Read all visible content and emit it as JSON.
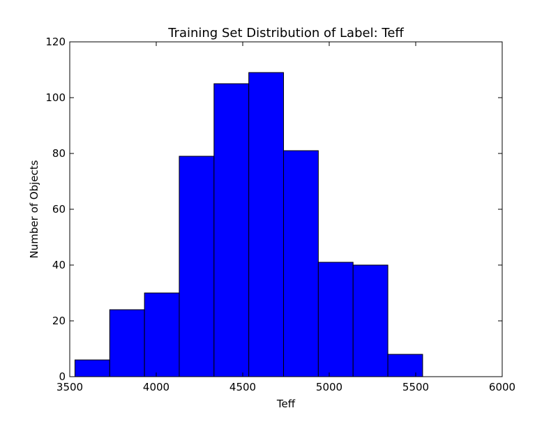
{
  "chart_data": {
    "type": "bar",
    "title": "Training Set Distribution of Label: Teff",
    "xlabel": "Teff",
    "ylabel": "Number of Objects",
    "xlim": [
      3500,
      6000
    ],
    "ylim": [
      0,
      120
    ],
    "xticks": [
      "3500",
      "4000",
      "4500",
      "5000",
      "5500",
      "6000"
    ],
    "yticks": [
      "0",
      "20",
      "40",
      "60",
      "80",
      "100",
      "120"
    ],
    "bin_edges": [
      3530,
      3731,
      3932,
      4133,
      4334,
      4535,
      4736,
      4937,
      5138,
      5339,
      5540
    ],
    "values": [
      6,
      24,
      30,
      79,
      105,
      109,
      81,
      41,
      40,
      8
    ],
    "bar_color": "#0000ff",
    "edge_color": "#000000",
    "grid": false
  }
}
